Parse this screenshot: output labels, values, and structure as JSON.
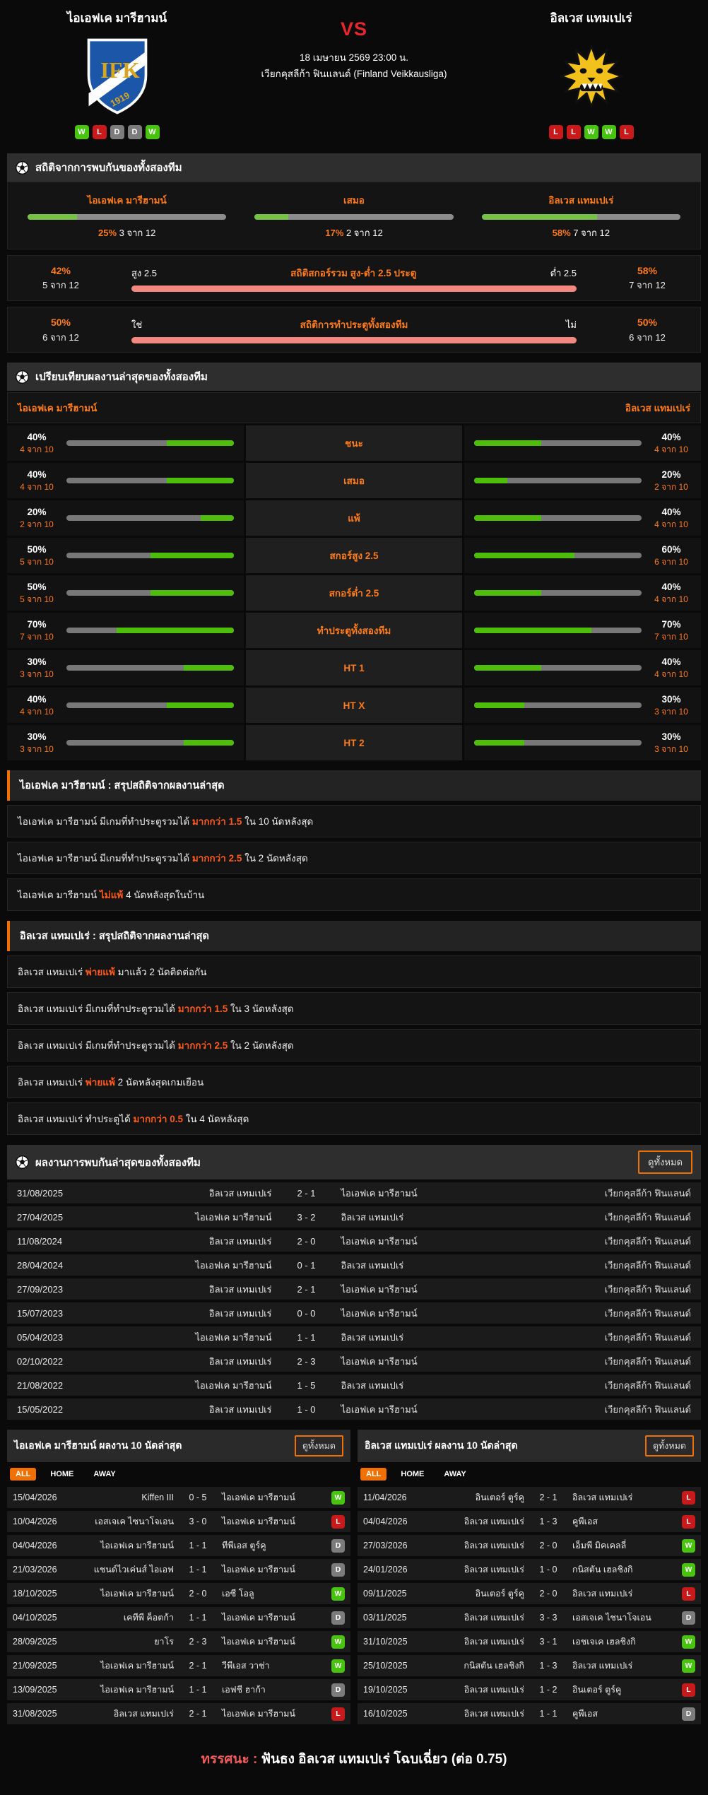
{
  "header": {
    "home": {
      "name": "ไอเอฟเค มารีฮามน์",
      "form": [
        "W",
        "L",
        "D",
        "D",
        "W"
      ]
    },
    "away": {
      "name": "อิลเวส แทมเปเร่",
      "form": [
        "L",
        "L",
        "W",
        "W",
        "L"
      ]
    },
    "vs": "VS",
    "datetime": "18 เมษายน 2569 23:00 น.",
    "league": "เวียกคุสลีก้า ฟินแลนด์ (Finland Veikkausliga)"
  },
  "colors": {
    "accent_orange": "#f07000",
    "green": "#4fbe0b",
    "red": "#c81a1a",
    "draw_gray": "#7c7c7c",
    "vs_red": "#e8262d"
  },
  "h2h_stats": {
    "title": "สถิติจากการพบกันของทั้งสองทีม",
    "bars": [
      {
        "label": "ไอเอฟเค มารีฮามน์",
        "pct": 25,
        "pct_label": "25%",
        "count": "3 จาก 12"
      },
      {
        "label": "เสมอ",
        "pct": 17,
        "pct_label": "17%",
        "count": "2 จาก 12"
      },
      {
        "label": "อิลเวส แทมเปเร่",
        "pct": 58,
        "pct_label": "58%",
        "count": "7 จาก 12"
      }
    ],
    "split_rows": [
      {
        "left_pct": 42,
        "left_pct_label": "42%",
        "left_count": "5 จาก 12",
        "left_label": "สูง 2.5",
        "title": "สถิติสกอร์รวม สูง-ต่ำ 2.5 ประตู",
        "right_label": "ต่ำ 2.5",
        "right_pct_label": "58%",
        "right_count": "7 จาก 12"
      },
      {
        "left_pct": 50,
        "left_pct_label": "50%",
        "left_count": "6 จาก 12",
        "left_label": "ใช่",
        "title": "สถิติการทำประตูทั้งสองทีม",
        "right_label": "ไม่",
        "right_pct_label": "50%",
        "right_count": "6 จาก 12"
      }
    ]
  },
  "comparison": {
    "title": "เปรียบเทียบผลงานล่าสุดของทั้งสองทีม",
    "home_name": "ไอเอฟเค มารีฮามน์",
    "away_name": "อิลเวส แทมเปเร่",
    "rows": [
      {
        "label": "ชนะ",
        "home_pct": 40,
        "home_pct_label": "40%",
        "home_count": "4 จาก 10",
        "away_pct": 40,
        "away_pct_label": "40%",
        "away_count": "4 จาก 10"
      },
      {
        "label": "เสมอ",
        "home_pct": 40,
        "home_pct_label": "40%",
        "home_count": "4 จาก 10",
        "away_pct": 20,
        "away_pct_label": "20%",
        "away_count": "2 จาก 10"
      },
      {
        "label": "แพ้",
        "home_pct": 20,
        "home_pct_label": "20%",
        "home_count": "2 จาก 10",
        "away_pct": 40,
        "away_pct_label": "40%",
        "away_count": "4 จาก 10"
      },
      {
        "label": "สกอร์สูง 2.5",
        "home_pct": 50,
        "home_pct_label": "50%",
        "home_count": "5 จาก 10",
        "away_pct": 60,
        "away_pct_label": "60%",
        "away_count": "6 จาก 10"
      },
      {
        "label": "สกอร์ต่ำ 2.5",
        "home_pct": 50,
        "home_pct_label": "50%",
        "home_count": "5 จาก 10",
        "away_pct": 40,
        "away_pct_label": "40%",
        "away_count": "4 จาก 10"
      },
      {
        "label": "ทำประตูทั้งสองทีม",
        "home_pct": 70,
        "home_pct_label": "70%",
        "home_count": "7 จาก 10",
        "away_pct": 70,
        "away_pct_label": "70%",
        "away_count": "7 จาก 10"
      },
      {
        "label": "HT 1",
        "home_pct": 30,
        "home_pct_label": "30%",
        "home_count": "3 จาก 10",
        "away_pct": 40,
        "away_pct_label": "40%",
        "away_count": "4 จาก 10"
      },
      {
        "label": "HT X",
        "home_pct": 40,
        "home_pct_label": "40%",
        "home_count": "4 จาก 10",
        "away_pct": 30,
        "away_pct_label": "30%",
        "away_count": "3 จาก 10"
      },
      {
        "label": "HT 2",
        "home_pct": 30,
        "home_pct_label": "30%",
        "home_count": "3 จาก 10",
        "away_pct": 30,
        "away_pct_label": "30%",
        "away_count": "3 จาก 10"
      }
    ]
  },
  "home_summary": {
    "title": "ไอเอฟเค มารีฮามน์ : สรุปสถิติจากผลงานล่าสุด",
    "lines": [
      {
        "pre": "ไอเอฟเค มารีฮามน์  มีเกมที่ทำประตูรวมได้ ",
        "hl": "มากกว่า 1.5",
        "post": " ใน 10 นัดหลังสุด"
      },
      {
        "pre": "ไอเอฟเค มารีฮามน์  มีเกมที่ทำประตูรวมได้ ",
        "hl": "มากกว่า 2.5",
        "post": " ใน 2 นัดหลังสุด"
      },
      {
        "pre": "ไอเอฟเค มารีฮามน์ ",
        "hl": "ไม่แพ้",
        "post": " 4 นัดหลังสุดในบ้าน"
      }
    ]
  },
  "away_summary": {
    "title": "อิลเวส แทมเปเร่ : สรุปสถิติจากผลงานล่าสุด",
    "lines": [
      {
        "pre": "อิลเวส แทมเปเร่ ",
        "hl": "พ่ายแพ้",
        "post": " มาแล้ว 2 นัดติดต่อกัน"
      },
      {
        "pre": "อิลเวส แทมเปเร่ มีเกมที่ทำประตูรวมได้ ",
        "hl": "มากกว่า 1.5",
        "post": " ใน 3 นัดหลังสุด"
      },
      {
        "pre": "อิลเวส แทมเปเร่ มีเกมที่ทำประตูรวมได้ ",
        "hl": "มากกว่า 2.5",
        "post": " ใน 2 นัดหลังสุด"
      },
      {
        "pre": "อิลเวส แทมเปเร่ ",
        "hl": "พ่ายแพ้",
        "post": " 2 นัดหลังสุดเกมเยือน"
      },
      {
        "pre": "อิลเวส แทมเปเร่ ทำประตูได้ ",
        "hl": "มากกว่า 0.5",
        "post": " ใน 4 นัดหลังสุด"
      }
    ]
  },
  "h2h_results": {
    "title": "ผลงานการพบกันล่าสุดของทั้งสองทีม",
    "view_all": "ดูทั้งหมด",
    "rows": [
      {
        "date": "31/08/2025",
        "home": "อิลเวส แทมเปเร่",
        "score": "2 - 1",
        "away": "ไอเอฟเค มารีฮามน์",
        "league": "เวียกคุสลีก้า ฟินแลนด์"
      },
      {
        "date": "27/04/2025",
        "home": "ไอเอฟเค มารีฮามน์",
        "score": "3 - 2",
        "away": "อิลเวส แทมเปเร่",
        "league": "เวียกคุสลีก้า ฟินแลนด์"
      },
      {
        "date": "11/08/2024",
        "home": "อิลเวส แทมเปเร่",
        "score": "2 - 0",
        "away": "ไอเอฟเค มารีฮามน์",
        "league": "เวียกคุสลีก้า ฟินแลนด์"
      },
      {
        "date": "28/04/2024",
        "home": "ไอเอฟเค มารีฮามน์",
        "score": "0 - 1",
        "away": "อิลเวส แทมเปเร่",
        "league": "เวียกคุสลีก้า ฟินแลนด์"
      },
      {
        "date": "27/09/2023",
        "home": "อิลเวส แทมเปเร่",
        "score": "2 - 1",
        "away": "ไอเอฟเค มารีฮามน์",
        "league": "เวียกคุสลีก้า ฟินแลนด์"
      },
      {
        "date": "15/07/2023",
        "home": "อิลเวส แทมเปเร่",
        "score": "0 - 0",
        "away": "ไอเอฟเค มารีฮามน์",
        "league": "เวียกคุสลีก้า ฟินแลนด์"
      },
      {
        "date": "05/04/2023",
        "home": "ไอเอฟเค มารีฮามน์",
        "score": "1 - 1",
        "away": "อิลเวส แทมเปเร่",
        "league": "เวียกคุสลีก้า ฟินแลนด์"
      },
      {
        "date": "02/10/2022",
        "home": "อิลเวส แทมเปเร่",
        "score": "2 - 3",
        "away": "ไอเอฟเค มารีฮามน์",
        "league": "เวียกคุสลีก้า ฟินแลนด์"
      },
      {
        "date": "21/08/2022",
        "home": "ไอเอฟเค มารีฮามน์",
        "score": "1 - 5",
        "away": "อิลเวส แทมเปเร่",
        "league": "เวียกคุสลีก้า ฟินแลนด์"
      },
      {
        "date": "15/05/2022",
        "home": "อิลเวส แทมเปเร่",
        "score": "1 - 0",
        "away": "ไอเอฟเค มารีฮามน์",
        "league": "เวียกคุสลีก้า ฟินแลนด์"
      }
    ]
  },
  "recent_home": {
    "title": "ไอเอฟเค มารีฮามน์ ผลงาน 10 นัดล่าสุด",
    "view_all": "ดูทั้งหมด",
    "tabs": [
      "ALL",
      "HOME",
      "AWAY"
    ],
    "rows": [
      {
        "date": "15/04/2026",
        "home": "Kiffen III",
        "score": "0 - 5",
        "away": "ไอเอฟเค มารีฮามน์",
        "result": "W"
      },
      {
        "date": "10/04/2026",
        "home": "เอสเจเค ไซนาโจเอน",
        "score": "3 - 0",
        "away": "ไอเอฟเค มารีฮามน์",
        "result": "L"
      },
      {
        "date": "04/04/2026",
        "home": "ไอเอฟเค มารีฮามน์",
        "score": "1 - 1",
        "away": "ทีพีเอส ตูร์คู",
        "result": "D"
      },
      {
        "date": "21/03/2026",
        "home": "แชนด์ไวเค่นส์ ไอเอฟ",
        "score": "1 - 1",
        "away": "ไอเอฟเค มารีฮามน์",
        "result": "D"
      },
      {
        "date": "18/10/2025",
        "home": "ไอเอฟเค มารีฮามน์",
        "score": "2 - 0",
        "away": "เอซี โอลู",
        "result": "W"
      },
      {
        "date": "04/10/2025",
        "home": "เคทีพี ค็อตก้า",
        "score": "1 - 1",
        "away": "ไอเอฟเค มารีฮามน์",
        "result": "D"
      },
      {
        "date": "28/09/2025",
        "home": "ยาโร",
        "score": "2 - 3",
        "away": "ไอเอฟเค มารีฮามน์",
        "result": "W"
      },
      {
        "date": "21/09/2025",
        "home": "ไอเอฟเค มารีฮามน์",
        "score": "2 - 1",
        "away": "วีพีเอส วาช่า",
        "result": "W"
      },
      {
        "date": "13/09/2025",
        "home": "ไอเอฟเค มารีฮามน์",
        "score": "1 - 1",
        "away": "เอฟชี ฮาก้า",
        "result": "D"
      },
      {
        "date": "31/08/2025",
        "home": "อิลเวส แทมเปเร่",
        "score": "2 - 1",
        "away": "ไอเอฟเค มารีฮามน์",
        "result": "L"
      }
    ]
  },
  "recent_away": {
    "title": "อิลเวส แทมเปเร่ ผลงาน 10 นัดล่าสุด",
    "view_all": "ดูทั้งหมด",
    "tabs": [
      "ALL",
      "HOME",
      "AWAY"
    ],
    "rows": [
      {
        "date": "11/04/2026",
        "home": "อินเตอร์ ตูร์คู",
        "score": "2 - 1",
        "away": "อิลเวส แทมเปเร่",
        "result": "L"
      },
      {
        "date": "04/04/2026",
        "home": "อิลเวส แทมเปเร่",
        "score": "1 - 3",
        "away": "คูพีเอส",
        "result": "L"
      },
      {
        "date": "27/03/2026",
        "home": "อิลเวส แทมเปเร่",
        "score": "2 - 0",
        "away": "เอ็มพี มิคเคลลี่",
        "result": "W"
      },
      {
        "date": "24/01/2026",
        "home": "อิลเวส แทมเปเร่",
        "score": "1 - 0",
        "away": "กนิสตัน เฮลชิงกิ",
        "result": "W"
      },
      {
        "date": "09/11/2025",
        "home": "อินเตอร์ ตูร์คู",
        "score": "2 - 0",
        "away": "อิลเวส แทมเปเร่",
        "result": "L"
      },
      {
        "date": "03/11/2025",
        "home": "อิลเวส แทมเปเร่",
        "score": "3 - 3",
        "away": "เอสเจเค ไชนาโจเอน",
        "result": "D"
      },
      {
        "date": "31/10/2025",
        "home": "อิลเวส แทมเปเร่",
        "score": "3 - 1",
        "away": "เอชเจเค เฮลชิงกิ",
        "result": "W"
      },
      {
        "date": "25/10/2025",
        "home": "กนิสตัน เฮลชิงกิ",
        "score": "1 - 3",
        "away": "อิลเวส แทมเปเร่",
        "result": "W"
      },
      {
        "date": "19/10/2025",
        "home": "อิลเวส แทมเปเร่",
        "score": "1 - 2",
        "away": "อินเตอร์ ตูร์คู",
        "result": "L"
      },
      {
        "date": "16/10/2025",
        "home": "อิลเวส แทมเปเร่",
        "score": "1 - 1",
        "away": "คูพีเอส",
        "result": "D"
      }
    ]
  },
  "verdict": {
    "label": "ทรรศนะ :",
    "text": " ฟันธง อิลเวส แทมเปเร่ โฉบเฉี่ยว (ต่อ 0.75)"
  }
}
